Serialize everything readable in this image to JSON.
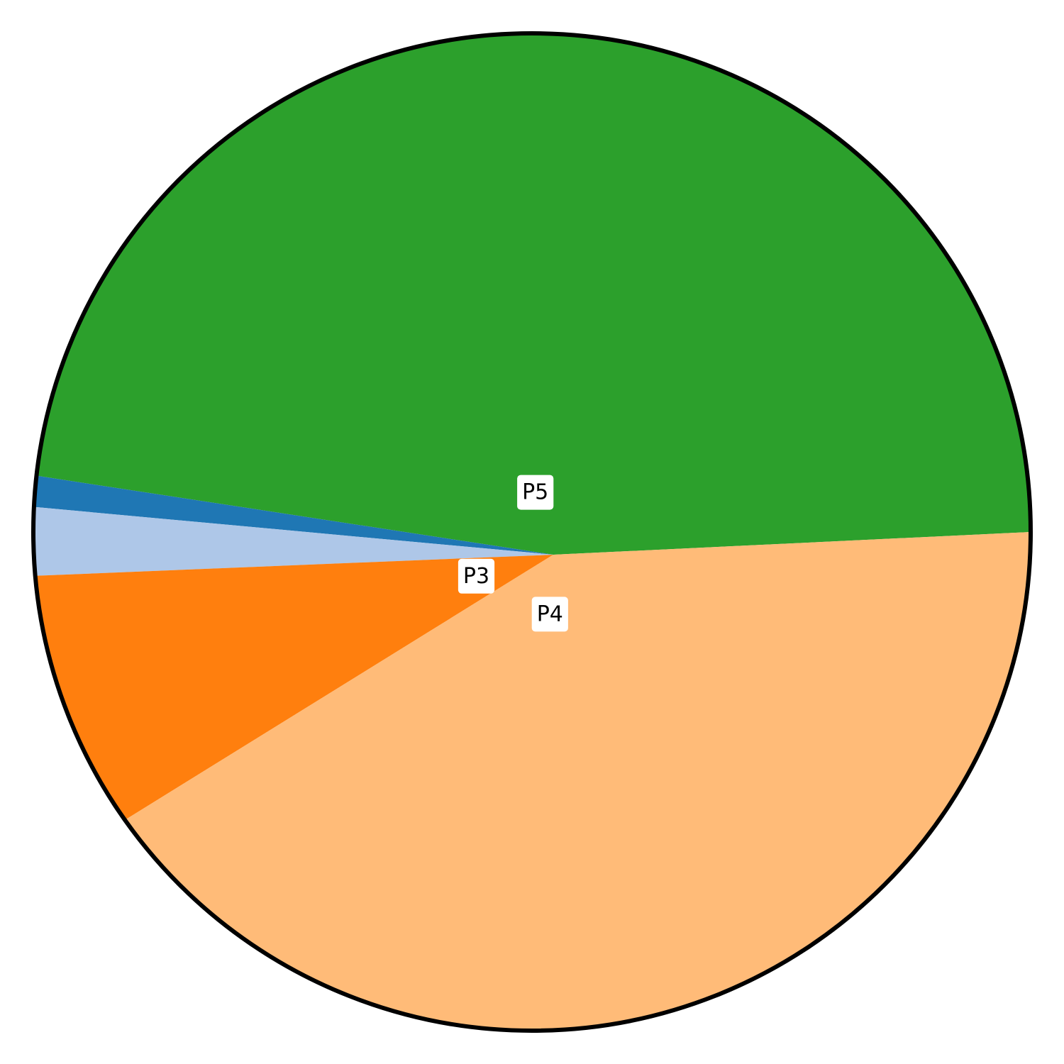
{
  "chart_data": {
    "type": "pie",
    "slices": [
      {
        "label": "P5",
        "value": 48.2,
        "color": "#2ca02c"
      },
      {
        "label": "",
        "value": 1.0,
        "color": "#1f77b4"
      },
      {
        "label": "",
        "value": 2.2,
        "color": "#aec7e8"
      },
      {
        "label": "P3",
        "value": 8.4,
        "color": "#ff7f0e"
      },
      {
        "label": "P4",
        "value": 40.2,
        "color": "#ffbb78"
      }
    ],
    "outline_color": "#000000"
  }
}
